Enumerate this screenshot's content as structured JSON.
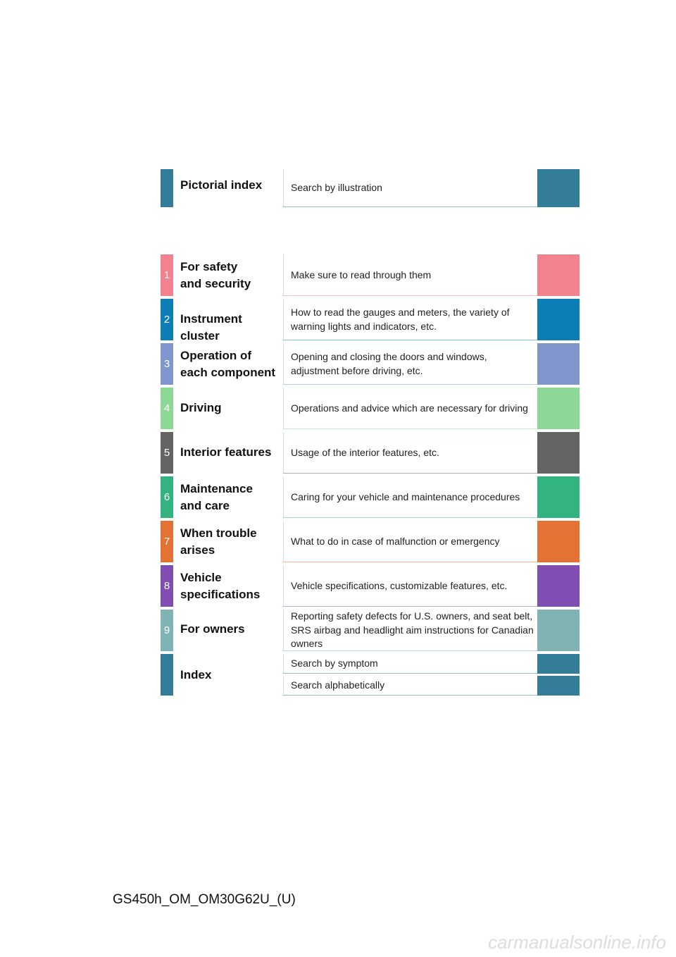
{
  "pictorial": {
    "title": [
      "Pictorial index"
    ],
    "description": [
      "Search by illustration"
    ],
    "color": "#337d98"
  },
  "sections": [
    {
      "number": "1",
      "title": [
        "For safety",
        "and security"
      ],
      "description": [
        "Make sure to read through them"
      ],
      "color": "#f2828f"
    },
    {
      "number": "2",
      "title": [
        "Instrument cluster"
      ],
      "description": [
        "How to read the gauges and meters, the variety of",
        "warning lights and indicators, etc."
      ],
      "color": "#0d7db5"
    },
    {
      "number": "3",
      "title": [
        "Operation of",
        "each component"
      ],
      "description": [
        "Opening and closing the doors and windows,",
        "adjustment before driving, etc."
      ],
      "color": "#8096cc"
    },
    {
      "number": "4",
      "title": [
        "Driving"
      ],
      "description": [
        "Operations and advice which are necessary for driving"
      ],
      "color": "#8dd897"
    },
    {
      "number": "5",
      "title": [
        "Interior features"
      ],
      "description": [
        "Usage of the interior features, etc."
      ],
      "color": "#646464"
    },
    {
      "number": "6",
      "title": [
        "Maintenance",
        "and care"
      ],
      "description": [
        "Caring for your vehicle and maintenance procedures"
      ],
      "color": "#33b37f"
    },
    {
      "number": "7",
      "title": [
        "When trouble",
        "arises"
      ],
      "description": [
        "What to do in case of malfunction or emergency"
      ],
      "color": "#e57235"
    },
    {
      "number": "8",
      "title": [
        "Vehicle",
        "specifications"
      ],
      "description": [
        "Vehicle specifications, customizable features, etc."
      ],
      "color": "#804db2"
    },
    {
      "number": "9",
      "title": [
        "For owners"
      ],
      "description": [
        "Reporting safety defects for U.S. owners, and seat belt,",
        "SRS airbag and headlight aim instructions for Canadian",
        "owners"
      ],
      "color": "#80b3b3"
    }
  ],
  "index": {
    "title": [
      "Index"
    ],
    "entries": [
      "Search by symptom",
      "Search alphabetically"
    ],
    "color": "#337d98"
  },
  "footer": "GS450h_OM_OM30G62U_(U)",
  "watermark": "carmanualsonline.info"
}
